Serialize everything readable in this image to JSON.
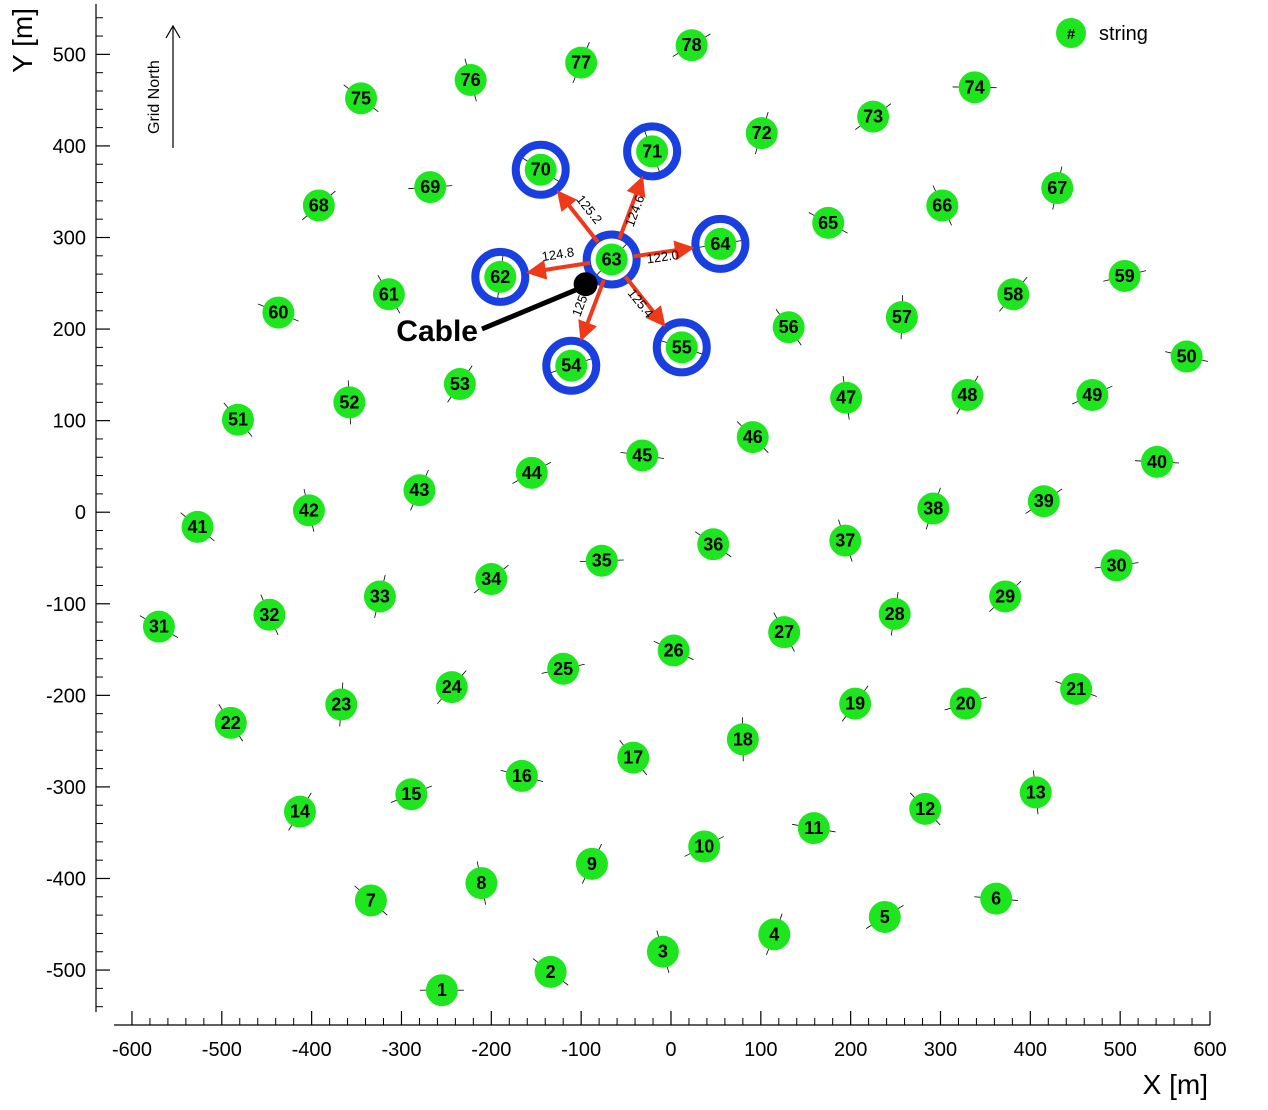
{
  "chart_data": {
    "type": "scatter",
    "xlabel": "X [m]",
    "ylabel": "Y [m]",
    "xlim": [
      -620,
      600
    ],
    "ylim": [
      -560,
      555
    ],
    "xticks": [
      -600,
      -500,
      -400,
      -300,
      -200,
      -100,
      0,
      100,
      200,
      300,
      400,
      500,
      600
    ],
    "yticks": [
      -500,
      -400,
      -300,
      -200,
      -100,
      0,
      100,
      200,
      300,
      400,
      500
    ],
    "grid": false,
    "legend": {
      "placement": "top-right",
      "symbol": "#",
      "label": "string"
    },
    "north_label": "Grid North",
    "cable_label": "Cable",
    "colors": {
      "marker": "#1ee61e",
      "ring": "#1a3fe0",
      "arrow": "#ee3a1a",
      "cable": "#000000"
    },
    "strings": [
      {
        "id": "1",
        "x": -255,
        "y": -522
      },
      {
        "id": "2",
        "x": -134,
        "y": -502
      },
      {
        "id": "3",
        "x": -9,
        "y": -480
      },
      {
        "id": "4",
        "x": 115,
        "y": -461
      },
      {
        "id": "5",
        "x": 238,
        "y": -442
      },
      {
        "id": "6",
        "x": 362,
        "y": -422
      },
      {
        "id": "7",
        "x": -334,
        "y": -424
      },
      {
        "id": "8",
        "x": -211,
        "y": -405
      },
      {
        "id": "9",
        "x": -88,
        "y": -384
      },
      {
        "id": "10",
        "x": 37,
        "y": -365
      },
      {
        "id": "11",
        "x": 159,
        "y": -345
      },
      {
        "id": "12",
        "x": 283,
        "y": -324
      },
      {
        "id": "13",
        "x": 406,
        "y": -306
      },
      {
        "id": "14",
        "x": -413,
        "y": -327
      },
      {
        "id": "15",
        "x": -289,
        "y": -308
      },
      {
        "id": "16",
        "x": -166,
        "y": -288
      },
      {
        "id": "17",
        "x": -42,
        "y": -268
      },
      {
        "id": "18",
        "x": 80,
        "y": -248
      },
      {
        "id": "19",
        "x": 205,
        "y": -209
      },
      {
        "id": "20",
        "x": 328,
        "y": -209
      },
      {
        "id": "21",
        "x": 451,
        "y": -193
      },
      {
        "id": "22",
        "x": -490,
        "y": -230
      },
      {
        "id": "23",
        "x": -367,
        "y": -210
      },
      {
        "id": "24",
        "x": -244,
        "y": -191
      },
      {
        "id": "25",
        "x": -120,
        "y": -171
      },
      {
        "id": "26",
        "x": 3,
        "y": -151
      },
      {
        "id": "27",
        "x": 126,
        "y": -131
      },
      {
        "id": "28",
        "x": 249,
        "y": -111
      },
      {
        "id": "29",
        "x": 372,
        "y": -92
      },
      {
        "id": "30",
        "x": 496,
        "y": -58
      },
      {
        "id": "31",
        "x": -570,
        "y": -125
      },
      {
        "id": "32",
        "x": -447,
        "y": -112
      },
      {
        "id": "33",
        "x": -324,
        "y": -92
      },
      {
        "id": "34",
        "x": -200,
        "y": -73
      },
      {
        "id": "35",
        "x": -77,
        "y": -53
      },
      {
        "id": "36",
        "x": 47,
        "y": -35
      },
      {
        "id": "37",
        "x": 194,
        "y": -31
      },
      {
        "id": "38",
        "x": 292,
        "y": 4
      },
      {
        "id": "39",
        "x": 415,
        "y": 12
      },
      {
        "id": "40",
        "x": 541,
        "y": 55
      },
      {
        "id": "41",
        "x": -527,
        "y": -16
      },
      {
        "id": "42",
        "x": -403,
        "y": 2
      },
      {
        "id": "43",
        "x": -280,
        "y": 24
      },
      {
        "id": "44",
        "x": -155,
        "y": 43
      },
      {
        "id": "45",
        "x": -32,
        "y": 62
      },
      {
        "id": "46",
        "x": 91,
        "y": 82
      },
      {
        "id": "47",
        "x": 195,
        "y": 125
      },
      {
        "id": "48",
        "x": 330,
        "y": 128
      },
      {
        "id": "49",
        "x": 469,
        "y": 128
      },
      {
        "id": "50",
        "x": 574,
        "y": 170
      },
      {
        "id": "51",
        "x": -482,
        "y": 101
      },
      {
        "id": "52",
        "x": -358,
        "y": 120
      },
      {
        "id": "53",
        "x": -235,
        "y": 140
      },
      {
        "id": "54",
        "x": -111,
        "y": 160
      },
      {
        "id": "55",
        "x": 12,
        "y": 180
      },
      {
        "id": "56",
        "x": 131,
        "y": 202
      },
      {
        "id": "57",
        "x": 257,
        "y": 213
      },
      {
        "id": "58",
        "x": 381,
        "y": 238
      },
      {
        "id": "59",
        "x": 505,
        "y": 258
      },
      {
        "id": "60",
        "x": -437,
        "y": 218
      },
      {
        "id": "61",
        "x": -314,
        "y": 238
      },
      {
        "id": "62",
        "x": -190,
        "y": 257
      },
      {
        "id": "63",
        "x": -66,
        "y": 276
      },
      {
        "id": "64",
        "x": 55,
        "y": 293
      },
      {
        "id": "65",
        "x": 175,
        "y": 316
      },
      {
        "id": "66",
        "x": 302,
        "y": 335
      },
      {
        "id": "67",
        "x": 430,
        "y": 354
      },
      {
        "id": "68",
        "x": -392,
        "y": 335
      },
      {
        "id": "69",
        "x": -268,
        "y": 355
      },
      {
        "id": "70",
        "x": -145,
        "y": 374
      },
      {
        "id": "71",
        "x": -21,
        "y": 394
      },
      {
        "id": "72",
        "x": 101,
        "y": 414
      },
      {
        "id": "73",
        "x": 225,
        "y": 432
      },
      {
        "id": "74",
        "x": 338,
        "y": 464
      },
      {
        "id": "75",
        "x": -345,
        "y": 452
      },
      {
        "id": "76",
        "x": -223,
        "y": 472
      },
      {
        "id": "77",
        "x": -100,
        "y": 491
      },
      {
        "id": "78",
        "x": 23,
        "y": 510
      }
    ],
    "highlighted": [
      "54",
      "55",
      "62",
      "64",
      "70",
      "71"
    ],
    "center": "63",
    "cable_point": {
      "x": -95,
      "y": 249
    },
    "spacings": [
      {
        "to": "70",
        "label": "125.2"
      },
      {
        "to": "71",
        "label": "124.6"
      },
      {
        "to": "64",
        "label": "122.0"
      },
      {
        "to": "55",
        "label": "125.4"
      },
      {
        "to": "54",
        "label": "125."
      },
      {
        "to": "62",
        "label": "124.8"
      }
    ]
  }
}
